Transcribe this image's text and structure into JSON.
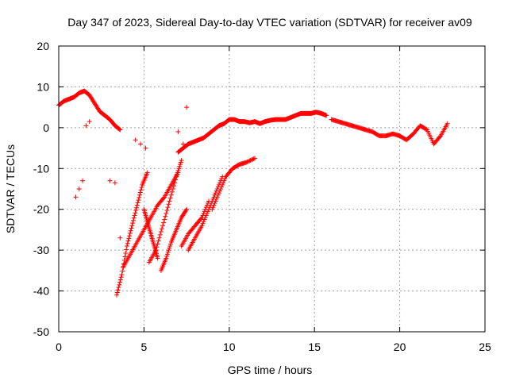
{
  "chart_data": {
    "type": "scatter",
    "title": "Day 347 of 2023, Sidereal Day-to-day VTEC variation (SDTVAR) for receiver av09",
    "xlabel": "GPS time / hours",
    "ylabel": "SDTVAR / TECUs",
    "xlim": [
      0,
      25
    ],
    "ylim": [
      -50,
      20
    ],
    "xticks": [
      "0",
      "5",
      "10",
      "15",
      "20",
      "25"
    ],
    "yticks": [
      "20",
      "10",
      "0",
      "-10",
      "-20",
      "-30",
      "-40",
      "-50"
    ],
    "xtick_values": [
      0,
      5,
      10,
      15,
      20,
      25
    ],
    "ytick_values": [
      20,
      10,
      0,
      -10,
      -20,
      -30,
      -40,
      -50
    ],
    "grid": true,
    "marker": "plus",
    "color": "#ff0000",
    "series": [
      {
        "name": "main-trace",
        "x": [
          0.0,
          0.3,
          0.6,
          0.9,
          1.2,
          1.5,
          1.8,
          2.1,
          2.4,
          2.7,
          3.0,
          3.3,
          3.6
        ],
        "y": [
          5.5,
          6.5,
          7.0,
          7.5,
          8.5,
          9.0,
          8.0,
          6.0,
          4.0,
          3.0,
          2.0,
          0.5,
          -0.5
        ]
      },
      {
        "name": "upper-trace-mid",
        "x": [
          7.0,
          7.3,
          7.6,
          7.9,
          8.2,
          8.5,
          8.8,
          9.1,
          9.4,
          9.7,
          10.0,
          10.3,
          10.6,
          10.9,
          11.2,
          11.5,
          11.8,
          12.1,
          12.4,
          12.7,
          13.0,
          13.3,
          13.6,
          13.9,
          14.2,
          14.5,
          14.8,
          15.1,
          15.4,
          15.7
        ],
        "y": [
          -6.0,
          -5.0,
          -4.0,
          -3.5,
          -3.0,
          -2.5,
          -1.5,
          -0.5,
          0.5,
          1.0,
          2.0,
          2.0,
          1.5,
          1.5,
          1.2,
          1.5,
          1.0,
          1.5,
          1.8,
          2.0,
          2.0,
          2.0,
          2.5,
          3.0,
          3.5,
          3.5,
          3.5,
          3.8,
          3.5,
          3.0
        ]
      },
      {
        "name": "upper-trace-right",
        "x": [
          16.0,
          16.4,
          16.8,
          17.2,
          17.6,
          18.0,
          18.4,
          18.8,
          19.2,
          19.6,
          20.0,
          20.4,
          20.8,
          21.2,
          21.6,
          22.0,
          22.4,
          22.8
        ],
        "y": [
          2.0,
          1.5,
          1.0,
          0.5,
          0.0,
          -0.5,
          -1.0,
          -2.0,
          -2.0,
          -1.5,
          -2.0,
          -3.0,
          -1.5,
          0.5,
          -0.5,
          -4.0,
          -2.0,
          1.0
        ]
      },
      {
        "name": "dive-trace-1",
        "x": [
          3.4,
          3.7,
          4.0,
          4.3,
          4.6,
          4.9,
          5.2
        ],
        "y": [
          -41.0,
          -36.0,
          -29.0,
          -24.0,
          -19.0,
          -14.0,
          -11.0
        ]
      },
      {
        "name": "dive-trace-2",
        "x": [
          3.8,
          4.2,
          4.6,
          5.0,
          5.4,
          5.8,
          6.2,
          6.6,
          7.0
        ],
        "y": [
          -34.0,
          -31.0,
          -28.0,
          -25.0,
          -22.0,
          -19.0,
          -17.0,
          -14.0,
          -11.0
        ]
      },
      {
        "name": "dive-trace-3",
        "x": [
          5.0,
          5.2,
          5.4,
          5.6,
          5.8
        ],
        "y": [
          -20.0,
          -23.0,
          -26.0,
          -29.0,
          -32.0
        ]
      },
      {
        "name": "dive-trace-4",
        "x": [
          5.3,
          5.7,
          6.1,
          6.5,
          6.9,
          7.2
        ],
        "y": [
          -33.0,
          -30.0,
          -24.0,
          -18.0,
          -12.0,
          -8.0
        ]
      },
      {
        "name": "dive-trace-5",
        "x": [
          6.0,
          6.3,
          6.6,
          6.9,
          7.2,
          7.5
        ],
        "y": [
          -35.0,
          -32.0,
          -28.0,
          -25.0,
          -22.0,
          -20.0
        ]
      },
      {
        "name": "dive-trace-6",
        "x": [
          7.2,
          7.6,
          8.0,
          8.4,
          8.8
        ],
        "y": [
          -29.0,
          -26.0,
          -24.0,
          -22.0,
          -18.0
        ]
      },
      {
        "name": "dive-trace-7",
        "x": [
          7.6,
          8.0,
          8.4,
          8.8,
          9.2,
          9.6
        ],
        "y": [
          -30.0,
          -27.0,
          -24.0,
          -20.0,
          -16.0,
          -12.0
        ]
      },
      {
        "name": "dive-trace-8",
        "x": [
          9.0,
          9.4,
          9.8,
          10.2,
          10.6,
          11.0,
          11.5
        ],
        "y": [
          -20.0,
          -16.0,
          -12.0,
          -10.0,
          -9.0,
          -8.5,
          -7.5
        ]
      },
      {
        "name": "small-cluster",
        "x": [
          1.0,
          1.2,
          1.4,
          3.0,
          3.3,
          3.6,
          4.5,
          4.8,
          5.1,
          1.6,
          1.8,
          7.5,
          7.0,
          7.3
        ],
        "y": [
          -17.0,
          -15.0,
          -13.0,
          -13.0,
          -13.5,
          -27.0,
          -3.0,
          -4.0,
          -5.0,
          0.5,
          1.5,
          5.0,
          -1.0,
          -4.0
        ]
      }
    ]
  }
}
